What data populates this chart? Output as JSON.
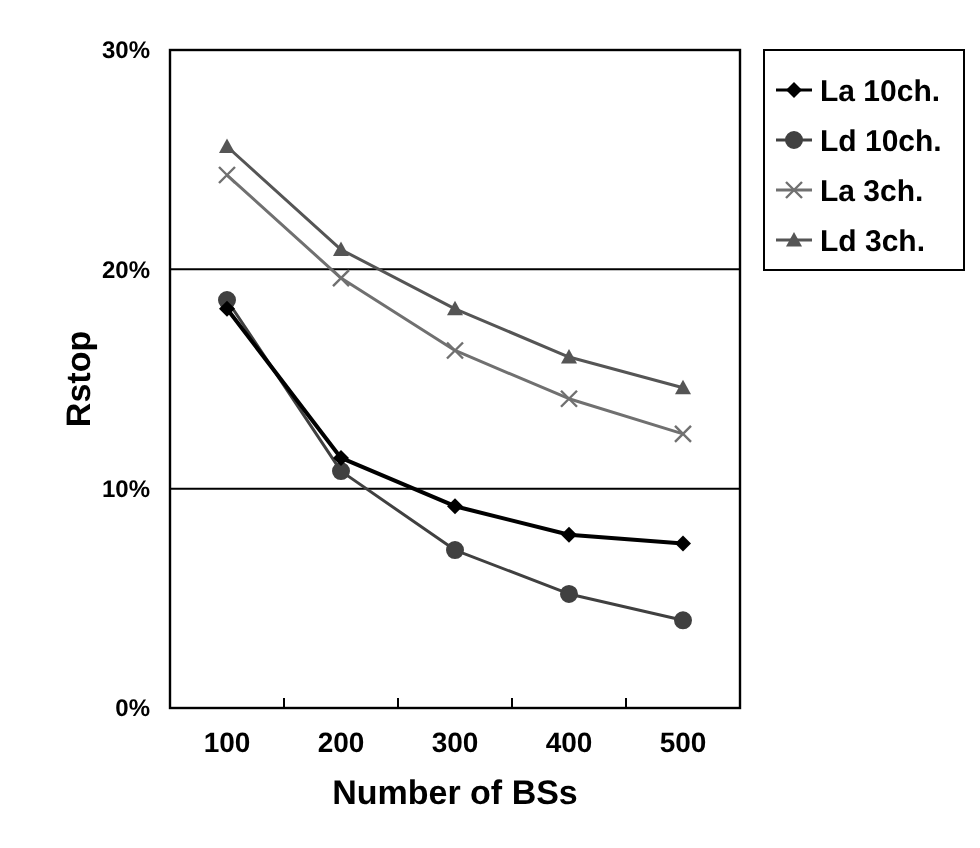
{
  "chart_data": {
    "type": "line",
    "xlabel": "Number of BSs",
    "ylabel": "Rstop",
    "categories": [
      "100",
      "200",
      "300",
      "400",
      "500"
    ],
    "series": [
      {
        "name": "La 10ch.",
        "color": "#000000",
        "marker": "diamond",
        "values": [
          18.2,
          11.4,
          9.2,
          7.9,
          7.5
        ]
      },
      {
        "name": "Ld 10ch.",
        "color": "#404040",
        "marker": "circle",
        "values": [
          18.6,
          10.8,
          7.2,
          5.2,
          4.0
        ]
      },
      {
        "name": "La 3ch.",
        "color": "#707070",
        "marker": "cross",
        "values": [
          24.3,
          19.6,
          16.3,
          14.1,
          12.5
        ]
      },
      {
        "name": "Ld 3ch.",
        "color": "#555555",
        "marker": "triangle",
        "values": [
          25.6,
          20.9,
          18.2,
          16.0,
          14.6
        ]
      }
    ],
    "ylim": [
      0,
      30
    ],
    "yticks": [
      {
        "value": 0,
        "label": "0%"
      },
      {
        "value": 10,
        "label": "10%"
      },
      {
        "value": 20,
        "label": "20%"
      },
      {
        "value": 30,
        "label": "30%"
      }
    ],
    "grid": "y",
    "legend": "right",
    "line_style": "solid"
  }
}
